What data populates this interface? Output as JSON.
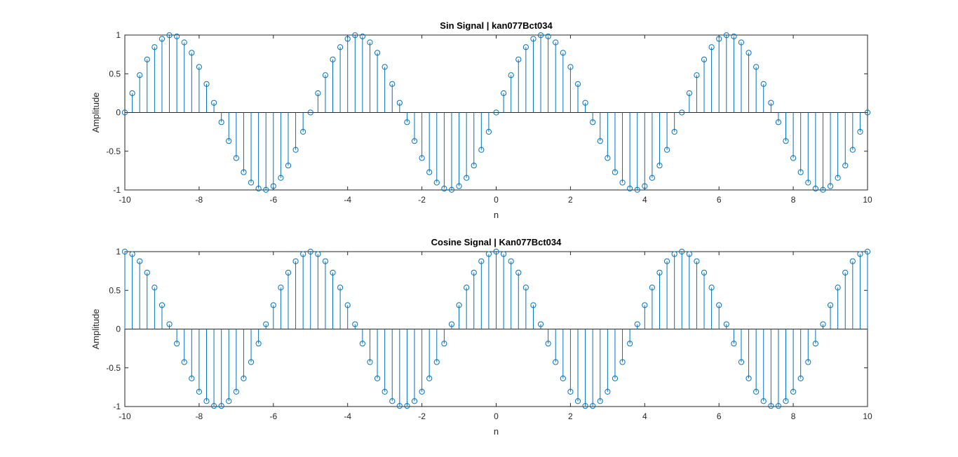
{
  "window": {
    "background": "#ffffff"
  },
  "chart_data": [
    {
      "type": "stem",
      "title": "Sin Signal | kan077Bct034",
      "xlabel": "n",
      "ylabel": "Amplitude",
      "xlim": [
        -10,
        10
      ],
      "ylim": [
        -1,
        1
      ],
      "xticks": [
        "-10",
        "-8",
        "-6",
        "-4",
        "-2",
        "0",
        "2",
        "4",
        "6",
        "8",
        "10"
      ],
      "yticks": [
        "-1",
        "-0.5",
        "0",
        "0.5",
        "1"
      ],
      "x": [
        -10,
        -9.8,
        -9.6,
        -9.4,
        -9.2,
        -9,
        -8.8,
        -8.6,
        -8.4,
        -8.2,
        -8,
        -7.8,
        -7.6,
        -7.4,
        -7.2,
        -7,
        -6.8,
        -6.6,
        -6.4,
        -6.2,
        -6,
        -5.8,
        -5.6,
        -5.4,
        -5.2,
        -5,
        -4.8,
        -4.6,
        -4.4,
        -4.2,
        -4,
        -3.8,
        -3.6,
        -3.4,
        -3.2,
        -3,
        -2.8,
        -2.6,
        -2.4,
        -2.2,
        -2,
        -1.8,
        -1.6,
        -1.4,
        -1.2,
        -1,
        -0.8,
        -0.6,
        -0.4,
        -0.2,
        0,
        0.2,
        0.4,
        0.6,
        0.8,
        1,
        1.2,
        1.4,
        1.6,
        1.8,
        2,
        2.2,
        2.4,
        2.6,
        2.8,
        3,
        3.2,
        3.4,
        3.6,
        3.8,
        4,
        4.2,
        4.4,
        4.6,
        4.8,
        5,
        5.2,
        5.4,
        5.6,
        5.8,
        6,
        6.2,
        6.4,
        6.6,
        6.8,
        7,
        7.2,
        7.4,
        7.6,
        7.8,
        8,
        8.2,
        8.4,
        8.6,
        8.8,
        9,
        9.2,
        9.4,
        9.6,
        9.8,
        10
      ],
      "y": [
        0,
        0.249,
        0.482,
        0.685,
        0.844,
        0.951,
        0.998,
        0.982,
        0.905,
        0.771,
        0.588,
        0.368,
        0.125,
        -0.125,
        -0.368,
        -0.588,
        -0.771,
        -0.905,
        -0.982,
        -0.998,
        -0.951,
        -0.844,
        -0.685,
        -0.482,
        -0.249,
        0,
        0.249,
        0.482,
        0.685,
        0.844,
        0.951,
        0.998,
        0.982,
        0.905,
        0.771,
        0.588,
        0.368,
        0.125,
        -0.125,
        -0.368,
        -0.588,
        -0.771,
        -0.905,
        -0.982,
        -0.998,
        -0.951,
        -0.844,
        -0.685,
        -0.482,
        -0.249,
        0,
        0.249,
        0.482,
        0.685,
        0.844,
        0.951,
        0.998,
        0.982,
        0.905,
        0.771,
        0.588,
        0.368,
        0.125,
        -0.125,
        -0.368,
        -0.588,
        -0.771,
        -0.905,
        -0.982,
        -0.998,
        -0.951,
        -0.844,
        -0.685,
        -0.482,
        -0.249,
        0,
        0.249,
        0.482,
        0.685,
        0.844,
        0.951,
        0.998,
        0.982,
        0.905,
        0.771,
        0.588,
        0.368,
        0.125,
        -0.125,
        -0.368,
        -0.588,
        -0.771,
        -0.905,
        -0.982,
        -0.998,
        -0.951,
        -0.844,
        -0.685,
        -0.482,
        -0.249,
        0
      ],
      "grid": false,
      "color": "#0072bd"
    },
    {
      "type": "stem",
      "title": "Cosine Signal | Kan077Bct034",
      "xlabel": "n",
      "ylabel": "Amplitude",
      "xlim": [
        -10,
        10
      ],
      "ylim": [
        -1,
        1
      ],
      "xticks": [
        "-10",
        "-8",
        "-6",
        "-4",
        "-2",
        "0",
        "2",
        "4",
        "6",
        "8",
        "10"
      ],
      "yticks": [
        "-1",
        "-0.5",
        "0",
        "0.5",
        "1"
      ],
      "x": [
        -10,
        -9.8,
        -9.6,
        -9.4,
        -9.2,
        -9,
        -8.8,
        -8.6,
        -8.4,
        -8.2,
        -8,
        -7.8,
        -7.6,
        -7.4,
        -7.2,
        -7,
        -6.8,
        -6.6,
        -6.4,
        -6.2,
        -6,
        -5.8,
        -5.6,
        -5.4,
        -5.2,
        -5,
        -4.8,
        -4.6,
        -4.4,
        -4.2,
        -4,
        -3.8,
        -3.6,
        -3.4,
        -3.2,
        -3,
        -2.8,
        -2.6,
        -2.4,
        -2.2,
        -2,
        -1.8,
        -1.6,
        -1.4,
        -1.2,
        -1,
        -0.8,
        -0.6,
        -0.4,
        -0.2,
        0,
        0.2,
        0.4,
        0.6,
        0.8,
        1,
        1.2,
        1.4,
        1.6,
        1.8,
        2,
        2.2,
        2.4,
        2.6,
        2.8,
        3,
        3.2,
        3.4,
        3.6,
        3.8,
        4,
        4.2,
        4.4,
        4.6,
        4.8,
        5,
        5.2,
        5.4,
        5.6,
        5.8,
        6,
        6.2,
        6.4,
        6.6,
        6.8,
        7,
        7.2,
        7.4,
        7.6,
        7.8,
        8,
        8.2,
        8.4,
        8.6,
        8.8,
        9,
        9.2,
        9.4,
        9.6,
        9.8,
        10
      ],
      "y": [
        1,
        0.969,
        0.876,
        0.729,
        0.536,
        0.309,
        0.063,
        -0.187,
        -0.426,
        -0.637,
        -0.809,
        -0.93,
        -0.992,
        -0.992,
        -0.93,
        -0.809,
        -0.637,
        -0.426,
        -0.187,
        0.063,
        0.309,
        0.536,
        0.729,
        0.876,
        0.969,
        1,
        0.969,
        0.876,
        0.729,
        0.536,
        0.309,
        0.063,
        -0.187,
        -0.426,
        -0.637,
        -0.809,
        -0.93,
        -0.992,
        -0.992,
        -0.93,
        -0.809,
        -0.637,
        -0.426,
        -0.187,
        0.063,
        0.309,
        0.536,
        0.729,
        0.876,
        0.969,
        1,
        0.969,
        0.876,
        0.729,
        0.536,
        0.309,
        0.063,
        -0.187,
        -0.426,
        -0.637,
        -0.809,
        -0.93,
        -0.992,
        -0.992,
        -0.93,
        -0.809,
        -0.637,
        -0.426,
        -0.187,
        0.063,
        0.309,
        0.536,
        0.729,
        0.876,
        0.969,
        1,
        0.969,
        0.876,
        0.729,
        0.536,
        0.309,
        0.063,
        -0.187,
        -0.426,
        -0.637,
        -0.809,
        -0.93,
        -0.992,
        -0.992,
        -0.93,
        -0.809,
        -0.637,
        -0.426,
        -0.187,
        0.063,
        0.309,
        0.536,
        0.729,
        0.876,
        0.969,
        1
      ],
      "grid": false,
      "color": "#0072bd"
    }
  ]
}
